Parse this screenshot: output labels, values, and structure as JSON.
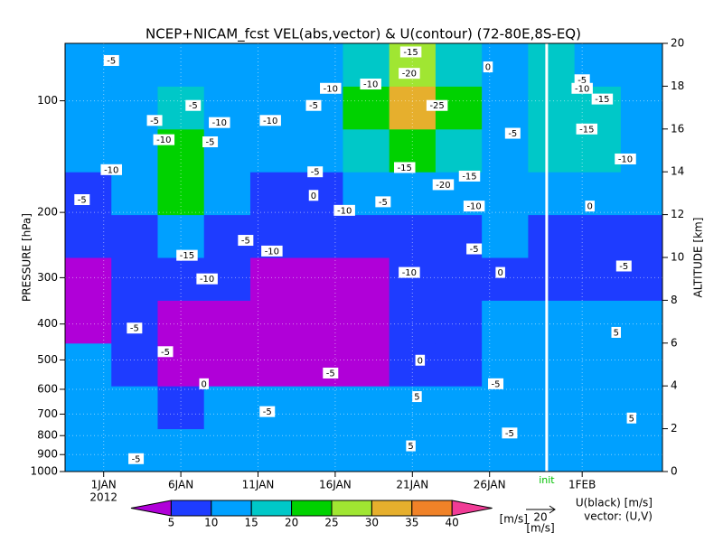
{
  "chart_data": {
    "type": "heatmap",
    "title": "NCEP+NICAM_fcst VEL(abs,vector) & U(contour)  (72-80E,8S-EQ)",
    "y_label": "PRESSURE [hPa]",
    "y2_label": "ALTITUDE [km]",
    "ylim": [
      1000,
      70
    ],
    "log_y": true,
    "yticks": [
      100,
      200,
      300,
      400,
      500,
      600,
      700,
      800,
      900,
      1000
    ],
    "y2lim": [
      0,
      20
    ],
    "y2ticks": [
      0,
      2,
      4,
      6,
      8,
      10,
      12,
      14,
      16,
      18,
      20
    ],
    "xlim": [
      -1.5,
      37.2
    ],
    "xticks": [
      {
        "value": 1,
        "label": "1JAN"
      },
      {
        "value": 6,
        "label": "6JAN"
      },
      {
        "value": 11,
        "label": "11JAN"
      },
      {
        "value": 16,
        "label": "16JAN"
      },
      {
        "value": 21,
        "label": "21JAN"
      },
      {
        "value": 26,
        "label": "26JAN"
      },
      {
        "value": 32,
        "label": "1FEB"
      }
    ],
    "year_label": "2012",
    "grid": true,
    "init": {
      "x": 29.7,
      "label": "init"
    },
    "field": {
      "x_edges": [
        -1.5,
        1.5,
        4.5,
        7.5,
        10.5,
        13.5,
        16.5,
        19.5,
        22.5,
        25.5,
        28.5,
        31.5,
        34.5,
        37.2
      ],
      "alt_edges": [
        0,
        2,
        4,
        6,
        8,
        10,
        12,
        14,
        16,
        18,
        20
      ],
      "speed": [
        [
          12,
          12,
          11,
          12,
          12,
          11,
          10,
          11,
          10,
          12,
          13,
          13,
          13
        ],
        [
          12,
          11,
          9,
          11,
          10,
          10,
          11,
          11,
          12,
          12,
          13,
          13,
          12
        ],
        [
          10,
          7,
          4,
          3,
          3,
          3,
          3,
          6,
          9,
          11,
          12,
          12,
          12
        ],
        [
          4,
          6,
          3,
          3,
          3,
          3,
          4,
          7,
          9,
          11,
          11,
          11,
          10
        ],
        [
          3,
          6,
          7,
          6,
          3,
          3,
          4,
          7,
          8,
          9,
          8,
          8,
          8
        ],
        [
          6,
          8,
          14,
          8,
          6,
          7,
          8,
          8,
          9,
          10,
          8,
          8,
          8
        ],
        [
          9,
          12,
          22,
          12,
          9,
          9,
          11,
          14,
          12,
          11,
          12,
          11,
          11
        ],
        [
          12,
          14,
          20,
          13,
          11,
          11,
          16,
          21,
          17,
          13,
          16,
          15,
          13
        ],
        [
          13,
          14,
          16,
          14,
          12,
          13,
          20,
          32,
          22,
          14,
          19,
          18,
          14
        ],
        [
          12,
          12,
          14,
          12,
          11,
          14,
          16,
          26,
          18,
          13,
          15,
          14,
          13
        ]
      ]
    },
    "colorbar": {
      "levels": [
        5,
        10,
        15,
        20,
        25,
        30,
        35,
        40
      ],
      "colors": [
        "#b000d8",
        "#1e3cff",
        "#00a0ff",
        "#00c8c8",
        "#00d200",
        "#a0e632",
        "#e6af2d",
        "#f08228",
        "#f03c96"
      ],
      "unit": "[m/s]"
    },
    "vector_key": {
      "value": 20,
      "unit": "[m/s]"
    },
    "legend_lines": [
      "U(black) [m/s]",
      "vector: (U,V)"
    ],
    "contour_labels": [
      {
        "value": -5,
        "x": 1.5,
        "y": 19.2
      },
      {
        "value": -5,
        "x": 6.8,
        "y": 17.1
      },
      {
        "value": -5,
        "x": 4.3,
        "y": 16.4
      },
      {
        "value": -10,
        "x": 4.9,
        "y": 15.5
      },
      {
        "value": -5,
        "x": 7.9,
        "y": 15.4
      },
      {
        "value": -10,
        "x": 8.5,
        "y": 16.3
      },
      {
        "value": -10,
        "x": 11.8,
        "y": 16.4
      },
      {
        "value": -10,
        "x": 1.5,
        "y": 14.1
      },
      {
        "value": -5,
        "x": -0.4,
        "y": 12.7
      },
      {
        "value": -15,
        "x": 6.4,
        "y": 10.1
      },
      {
        "value": -5,
        "x": 10.2,
        "y": 10.8
      },
      {
        "value": -10,
        "x": 11.9,
        "y": 10.3
      },
      {
        "value": -10,
        "x": 7.7,
        "y": 9.0
      },
      {
        "value": -5,
        "x": 3.0,
        "y": 6.7
      },
      {
        "value": -5,
        "x": 5.0,
        "y": 5.6
      },
      {
        "value": 0,
        "x": 7.5,
        "y": 4.1
      },
      {
        "value": -5,
        "x": 11.6,
        "y": 2.8
      },
      {
        "value": -10,
        "x": 15.7,
        "y": 17.9
      },
      {
        "value": -10,
        "x": 18.3,
        "y": 18.1
      },
      {
        "value": -5,
        "x": 14.6,
        "y": 17.1
      },
      {
        "value": -5,
        "x": 14.7,
        "y": 14.0
      },
      {
        "value": 0,
        "x": 14.6,
        "y": 12.9
      },
      {
        "value": -10,
        "x": 16.6,
        "y": 12.2
      },
      {
        "value": -5,
        "x": 19.1,
        "y": 12.6
      },
      {
        "value": -15,
        "x": 20.5,
        "y": 14.2
      },
      {
        "value": -20,
        "x": 20.8,
        "y": 18.6
      },
      {
        "value": -15,
        "x": 20.9,
        "y": 19.6
      },
      {
        "value": 0,
        "x": 25.9,
        "y": 18.9
      },
      {
        "value": -25,
        "x": 22.6,
        "y": 17.1
      },
      {
        "value": -20,
        "x": 23.0,
        "y": 13.4
      },
      {
        "value": -15,
        "x": 24.7,
        "y": 13.8
      },
      {
        "value": -10,
        "x": 25.0,
        "y": 12.4
      },
      {
        "value": -5,
        "x": 27.5,
        "y": 15.8
      },
      {
        "value": -5,
        "x": 25.0,
        "y": 10.4
      },
      {
        "value": 0,
        "x": 26.7,
        "y": 9.3
      },
      {
        "value": -10,
        "x": 20.8,
        "y": 9.3
      },
      {
        "value": 0,
        "x": 21.5,
        "y": 5.2
      },
      {
        "value": -5,
        "x": 15.7,
        "y": 4.6
      },
      {
        "value": 5,
        "x": 21.3,
        "y": 3.5
      },
      {
        "value": -5,
        "x": 26.4,
        "y": 4.1
      },
      {
        "value": 5,
        "x": 20.9,
        "y": 1.2
      },
      {
        "value": -5,
        "x": 27.3,
        "y": 1.8
      },
      {
        "value": -5,
        "x": 3.1,
        "y": 0.6
      },
      {
        "value": -5,
        "x": 32.0,
        "y": 18.3
      },
      {
        "value": -10,
        "x": 32.0,
        "y": 17.9
      },
      {
        "value": -15,
        "x": 33.3,
        "y": 17.4
      },
      {
        "value": -15,
        "x": 32.3,
        "y": 16.0
      },
      {
        "value": -10,
        "x": 34.8,
        "y": 14.6
      },
      {
        "value": 0,
        "x": 32.5,
        "y": 12.4
      },
      {
        "value": -5,
        "x": 34.7,
        "y": 9.6
      },
      {
        "value": 5,
        "x": 34.2,
        "y": 6.5
      },
      {
        "value": 5,
        "x": 35.2,
        "y": 2.5
      }
    ]
  }
}
